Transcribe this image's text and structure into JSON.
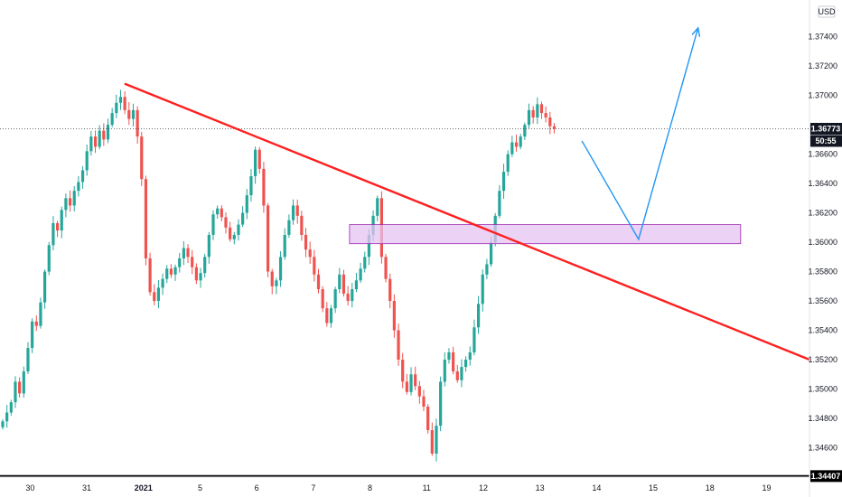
{
  "chart_data": {
    "type": "candlestick",
    "currency": "USD",
    "ylim": [
      1.344,
      1.3765
    ],
    "y_ticks": [
      "1.37400",
      "1.37200",
      "1.37000",
      "1.36600",
      "1.36400",
      "1.36200",
      "1.36000",
      "1.35800",
      "1.35600",
      "1.35400",
      "1.35200",
      "1.35000",
      "1.34800",
      "1.34600"
    ],
    "x_ticks": [
      {
        "label": "30",
        "pos": 0.5
      },
      {
        "label": "31",
        "pos": 1.5
      },
      {
        "label": "2021",
        "pos": 2.5,
        "bold": true
      },
      {
        "label": "5",
        "pos": 3.5
      },
      {
        "label": "6",
        "pos": 4.5
      },
      {
        "label": "7",
        "pos": 5.5
      },
      {
        "label": "8",
        "pos": 6.5
      },
      {
        "label": "11",
        "pos": 7.5
      },
      {
        "label": "12",
        "pos": 8.5
      },
      {
        "label": "13",
        "pos": 9.5
      },
      {
        "label": "14",
        "pos": 10.5
      },
      {
        "label": "15",
        "pos": 11.5
      },
      {
        "label": "18",
        "pos": 12.5
      },
      {
        "label": "19",
        "pos": 13.5
      }
    ],
    "current_price": {
      "label": "1.36773",
      "value": 1.36773,
      "countdown": "50:55"
    },
    "support_level": {
      "label": "1.34407",
      "value": 1.34407
    },
    "zone": {
      "x0": 7.0,
      "x1": 14.0,
      "y_low": 1.3599,
      "y_high": 1.3612
    },
    "trendline": {
      "x0": 2.2,
      "y0": 1.3708,
      "x1": 14.1,
      "y1": 1.352
    },
    "projection": [
      {
        "x": 10.05,
        "y": 1.3669
      },
      {
        "x": 11.05,
        "y": 1.3602
      },
      {
        "x": 12.1,
        "y": 1.3746
      }
    ],
    "closes": [
      1.3478,
      1.3484,
      1.3491,
      1.3505,
      1.3497,
      1.3512,
      1.3528,
      1.3546,
      1.3543,
      1.3559,
      1.358,
      1.3598,
      1.3613,
      1.3608,
      1.3622,
      1.363,
      1.3625,
      1.3635,
      1.3641,
      1.3649,
      1.3662,
      1.3672,
      1.3665,
      1.3676,
      1.367,
      1.368,
      1.3688,
      1.3695,
      1.3699,
      1.369,
      1.3684,
      1.369,
      1.3672,
      1.3643,
      1.3589,
      1.3566,
      1.356,
      1.3569,
      1.3575,
      1.3582,
      1.3578,
      1.3583,
      1.3589,
      1.3596,
      1.359,
      1.3583,
      1.3574,
      1.3579,
      1.359,
      1.3605,
      1.3619,
      1.3623,
      1.3617,
      1.361,
      1.3602,
      1.3605,
      1.3612,
      1.362,
      1.3632,
      1.3645,
      1.3663,
      1.365,
      1.3625,
      1.358,
      1.357,
      1.3574,
      1.359,
      1.3605,
      1.3615,
      1.3625,
      1.3618,
      1.3605,
      1.3595,
      1.359,
      1.3578,
      1.3568,
      1.3555,
      1.3545,
      1.3555,
      1.3568,
      1.3578,
      1.3565,
      1.356,
      1.3568,
      1.3574,
      1.3582,
      1.359,
      1.3605,
      1.3618,
      1.363,
      1.359,
      1.3575,
      1.356,
      1.354,
      1.352,
      1.3505,
      1.3498,
      1.351,
      1.3502,
      1.3495,
      1.3488,
      1.3472,
      1.3456,
      1.3475,
      1.3505,
      1.352,
      1.3525,
      1.3512,
      1.3506,
      1.3515,
      1.352,
      1.3525,
      1.3542,
      1.3558,
      1.3578,
      1.3585,
      1.36,
      1.3618,
      1.3635,
      1.3648,
      1.366,
      1.3668,
      1.3665,
      1.3672,
      1.368,
      1.369,
      1.3685,
      1.3694,
      1.3688,
      1.3685,
      1.3679,
      1.36773
    ]
  },
  "colors": {
    "bull": "#26a69a",
    "bear": "#ef5350",
    "trendline": "#ff1f1f",
    "zone_fill": "#e6c3f0",
    "zone_stroke": "#9c27b0",
    "projection": "#2196f3",
    "support": "#000000",
    "axis_text": "#131722"
  }
}
